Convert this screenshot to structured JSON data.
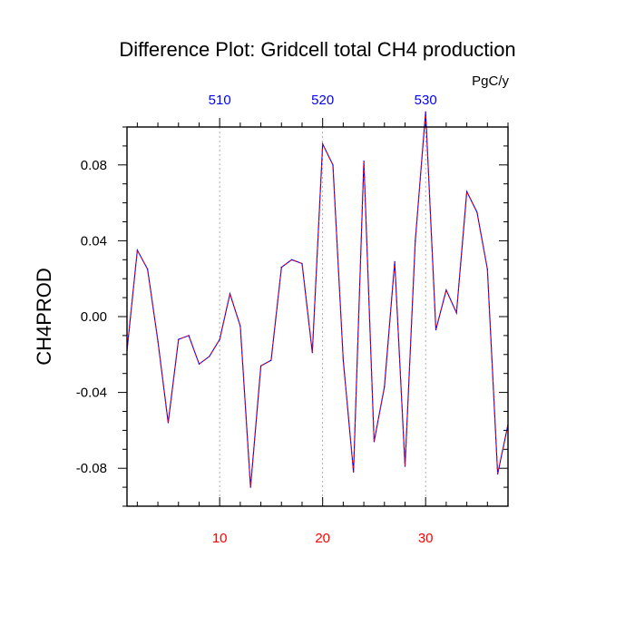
{
  "chart_data": {
    "type": "line",
    "title": "Difference Plot: Gridcell total CH4 production",
    "units": "PgC/y",
    "ylabel": "CH4PROD",
    "xlim": [
      1,
      38
    ],
    "ylim": [
      -0.1,
      0.1
    ],
    "grid": "vertical dashed lines at bottom-axis ticks",
    "x_ticks": [
      10,
      20,
      30
    ],
    "x_tick_labels": [
      "10",
      "20",
      "30"
    ],
    "x_tick_color": "#ff0000",
    "top_ticks": [
      10,
      20,
      30
    ],
    "top_tick_labels": [
      "510",
      "520",
      "530"
    ],
    "top_tick_color": "#0000ff",
    "y_ticks": [
      -0.08,
      -0.04,
      0.0,
      0.04,
      0.08
    ],
    "y_tick_labels": [
      "-0.08",
      "-0.04",
      "0.00",
      "0.04",
      "0.08"
    ],
    "series": [
      {
        "line_color": "#0000ff",
        "overlay_color": "#ff0000",
        "line_style": "dashed",
        "x": [
          1,
          2,
          3,
          4,
          5,
          6,
          7,
          8,
          9,
          10,
          11,
          12,
          13,
          14,
          15,
          16,
          17,
          18,
          19,
          20,
          21,
          22,
          23,
          24,
          25,
          26,
          27,
          28,
          29,
          30,
          31,
          32,
          33,
          34,
          35,
          36,
          37,
          38
        ],
        "y": [
          -0.018,
          0.035,
          0.025,
          -0.013,
          -0.056,
          -0.012,
          -0.01,
          -0.025,
          -0.021,
          -0.012,
          0.012,
          -0.005,
          -0.09,
          -0.026,
          -0.023,
          0.026,
          0.03,
          0.028,
          -0.019,
          0.091,
          0.08,
          -0.023,
          -0.082,
          0.082,
          -0.066,
          -0.037,
          0.029,
          -0.079,
          0.04,
          0.108,
          -0.007,
          0.014,
          0.002,
          0.066,
          0.055,
          0.025,
          -0.083,
          -0.057
        ]
      }
    ]
  }
}
